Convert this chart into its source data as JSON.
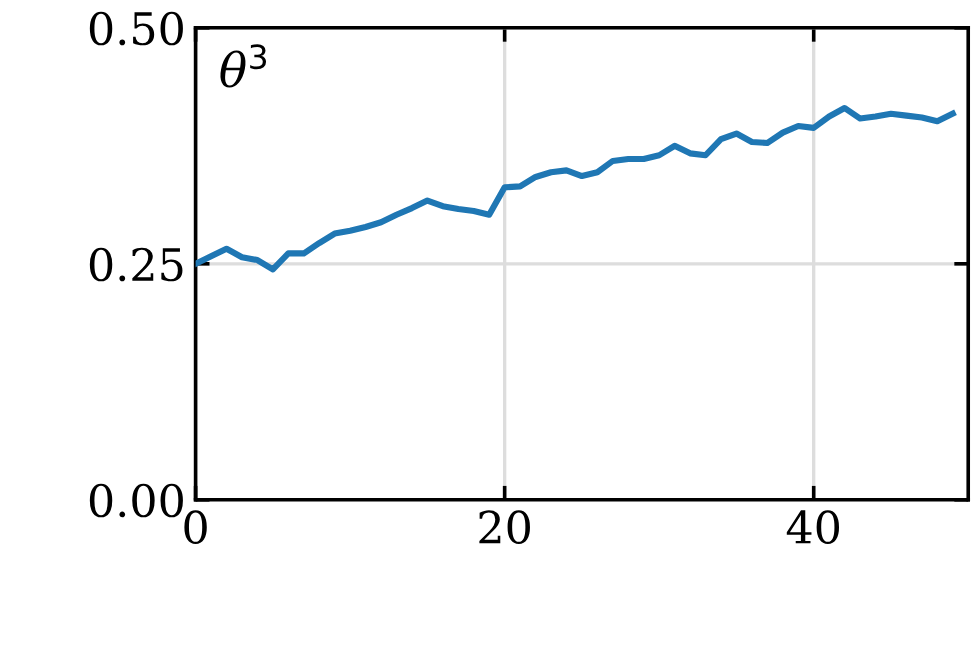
{
  "chart_data": {
    "type": "line",
    "x": [
      0,
      1,
      2,
      3,
      4,
      5,
      6,
      7,
      8,
      9,
      10,
      11,
      12,
      13,
      14,
      15,
      16,
      17,
      18,
      19,
      20,
      21,
      22,
      23,
      24,
      25,
      26,
      27,
      28,
      29,
      30,
      31,
      32,
      33,
      34,
      35,
      36,
      37,
      38,
      39,
      40,
      41,
      42,
      43,
      44,
      45,
      46,
      47,
      48,
      49
    ],
    "series": [
      {
        "color": "#1f77b4",
        "values": [
          0.25,
          0.258,
          0.266,
          0.257,
          0.254,
          0.244,
          0.261,
          0.261,
          0.272,
          0.282,
          0.285,
          0.289,
          0.294,
          0.302,
          0.309,
          0.317,
          0.311,
          0.308,
          0.306,
          0.302,
          0.331,
          0.332,
          0.342,
          0.347,
          0.349,
          0.343,
          0.347,
          0.359,
          0.361,
          0.361,
          0.365,
          0.375,
          0.367,
          0.365,
          0.382,
          0.388,
          0.379,
          0.378,
          0.389,
          0.396,
          0.394,
          0.406,
          0.415,
          0.404,
          0.406,
          0.409,
          0.407,
          0.405,
          0.401,
          0.409
        ]
      }
    ],
    "annotations": [
      "θ$^{3}$"
    ],
    "xlim": [
      0,
      50
    ],
    "ylim": [
      0,
      0.5
    ],
    "xticks": [
      0,
      20,
      40
    ],
    "yticks": [
      {
        "value": 0,
        "label": "0.00"
      },
      {
        "value": 0.25,
        "label": "0.25"
      },
      {
        "value": 0.5,
        "label": "0.50"
      }
    ],
    "grid": true
  }
}
